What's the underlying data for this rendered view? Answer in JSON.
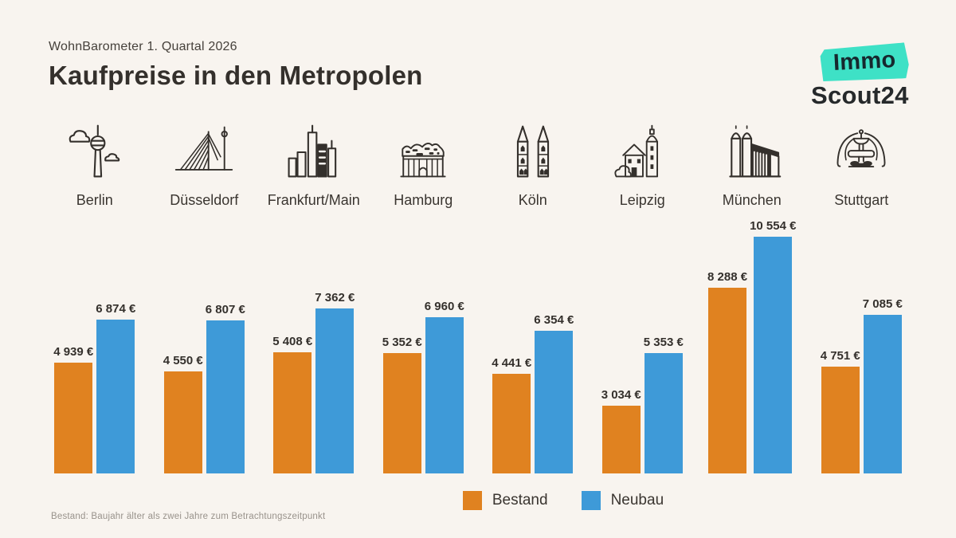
{
  "theme": {
    "background": "#F8F4EF",
    "ink": "#34302C",
    "muted": "#98928B",
    "bestand": "#E08220",
    "neubau": "#3E9AD8",
    "teal": "#3EE1C6"
  },
  "header": {
    "eyebrow": "WohnBarometer 1. Quartal 2026",
    "title": "Kaufpreise in den Metropolen"
  },
  "logo": {
    "badge_text": "Immo",
    "scout_text": "Scout24"
  },
  "icons": {
    "berlin": "berlin-tv-tower-icon",
    "duesseldorf": "duesseldorf-rhine-bridge-icon",
    "frankfurt": "frankfurt-skyline-icon",
    "hamburg": "hamburg-elbphilharmonie-icon",
    "koeln": "cologne-cathedral-icon",
    "leipzig": "leipzig-church-icon",
    "muenchen": "munich-frauenkirche-icon",
    "stuttgart": "stuttgart-fountain-icon"
  },
  "chart_data": {
    "type": "bar",
    "title": "Kaufpreise in den Metropolen",
    "subtitle": "WohnBarometer 1. Quartal 2026",
    "categories": [
      "Berlin",
      "Düsseldorf",
      "Frankfurt/Main",
      "Hamburg",
      "Köln",
      "Leipzig",
      "München",
      "Stuttgart"
    ],
    "series": [
      {
        "name": "Bestand",
        "color": "#E08220",
        "values": [
          4939,
          4550,
          5408,
          5352,
          4441,
          3034,
          8288,
          4751
        ],
        "labels": [
          "4 939 €",
          "4 550 €",
          "5 408 €",
          "5 352 €",
          "4 441 €",
          "3 034 €",
          "8 288 €",
          "4 751 €"
        ]
      },
      {
        "name": "Neubau",
        "color": "#3E9AD8",
        "values": [
          6874,
          6807,
          7362,
          6960,
          6354,
          5353,
          10554,
          7085
        ],
        "labels": [
          "6 874 €",
          "6 807 €",
          "7 362 €",
          "6 960 €",
          "6 354 €",
          "5 353 €",
          "10 554 €",
          "7 085 €"
        ]
      }
    ],
    "unit": "€",
    "ylim": [
      0,
      10554
    ],
    "grid": false,
    "legend_position": "bottom"
  },
  "legend": {
    "items": [
      {
        "label": "Bestand"
      },
      {
        "label": "Neubau"
      }
    ]
  },
  "footnote": "Bestand: Baujahr älter als zwei Jahre zum Betrachtungszeitpunkt"
}
